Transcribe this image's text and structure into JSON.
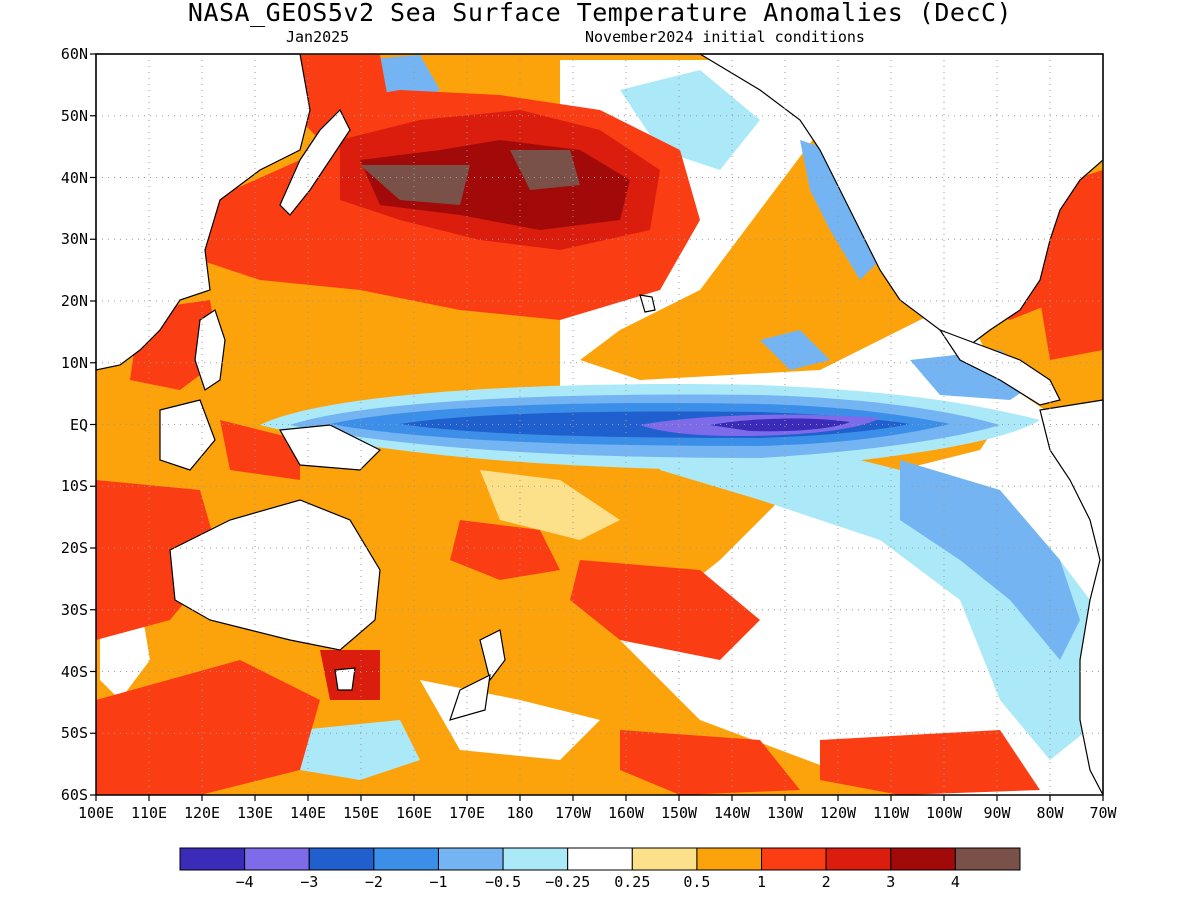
{
  "title": "NASA_GEOS5v2 Sea Surface Temperature Anomalies (DecC)",
  "subtitle_left": "Jan2025",
  "subtitle_right": "November2024 initial conditions",
  "map": {
    "region": "Pacific Ocean",
    "lat_range": [
      -60,
      60
    ],
    "lon_range": [
      100,
      290
    ],
    "grid_lines": true,
    "land_color": "#ffffff",
    "coastline_color": "#000000"
  },
  "lat_labels": [
    "60N",
    "50N",
    "40N",
    "30N",
    "20N",
    "10N",
    "EQ",
    "10S",
    "20S",
    "30S",
    "40S",
    "50S",
    "60S"
  ],
  "lon_labels": [
    "100E",
    "110E",
    "120E",
    "130E",
    "140E",
    "150E",
    "160E",
    "170E",
    "180",
    "170W",
    "160W",
    "150W",
    "140W",
    "130W",
    "120W",
    "110W",
    "100W",
    "90W",
    "80W",
    "70W"
  ],
  "colorbar": {
    "colors": [
      "#3a2bb8",
      "#7d6bea",
      "#1f5fce",
      "#3c8fe8",
      "#74b4f2",
      "#abe9f8",
      "#ffffff",
      "#fde08a",
      "#fca30c",
      "#fb3d14",
      "#db1d0e",
      "#a20a0a",
      "#7a5148"
    ],
    "tick_labels": [
      "−4",
      "−3",
      "−2",
      "−1",
      "−0.5",
      "−0.25",
      "0.25",
      "0.5",
      "1",
      "2",
      "3",
      "4"
    ]
  }
}
